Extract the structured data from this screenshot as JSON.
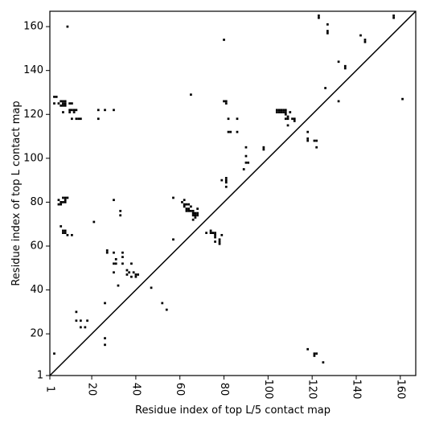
{
  "chart_data": {
    "type": "scatter",
    "title": "",
    "xlabel": "Residue index of top L/5 contact map",
    "ylabel": "Residue index of top L contact map",
    "xlim": [
      1,
      167
    ],
    "ylim": [
      1,
      167
    ],
    "xticks": [
      1,
      20,
      40,
      60,
      80,
      100,
      120,
      140,
      160
    ],
    "yticks": [
      1,
      20,
      40,
      60,
      80,
      100,
      120,
      140,
      160
    ],
    "grid": false,
    "legend": "none",
    "diagonal": {
      "from": [
        1,
        1
      ],
      "to": [
        167,
        167
      ]
    },
    "marker_color": "#000000",
    "line_color": "#000000",
    "points": [
      [
        3,
        11
      ],
      [
        3,
        125
      ],
      [
        3,
        128
      ],
      [
        4,
        128
      ],
      [
        5,
        125
      ],
      [
        5,
        79
      ],
      [
        5,
        81
      ],
      [
        6,
        79
      ],
      [
        6,
        80
      ],
      [
        6,
        69
      ],
      [
        6,
        124
      ],
      [
        6,
        126
      ],
      [
        7,
        124
      ],
      [
        7,
        125
      ],
      [
        7,
        126
      ],
      [
        7,
        121
      ],
      [
        7,
        66
      ],
      [
        7,
        67
      ],
      [
        7,
        80
      ],
      [
        7,
        82
      ],
      [
        8,
        66
      ],
      [
        8,
        67
      ],
      [
        8,
        80
      ],
      [
        8,
        81
      ],
      [
        8,
        82
      ],
      [
        8,
        124
      ],
      [
        8,
        125
      ],
      [
        8,
        126
      ],
      [
        9,
        65
      ],
      [
        9,
        82
      ],
      [
        9,
        160
      ],
      [
        10,
        125
      ],
      [
        10,
        122
      ],
      [
        10,
        121
      ],
      [
        11,
        125
      ],
      [
        11,
        122
      ],
      [
        11,
        118
      ],
      [
        11,
        65
      ],
      [
        12,
        122
      ],
      [
        12,
        121
      ],
      [
        13,
        122
      ],
      [
        13,
        118
      ],
      [
        13,
        30
      ],
      [
        13,
        26
      ],
      [
        14,
        118
      ],
      [
        15,
        118
      ],
      [
        15,
        26
      ],
      [
        15,
        23
      ],
      [
        17,
        23
      ],
      [
        18,
        26
      ],
      [
        21,
        71
      ],
      [
        23,
        122
      ],
      [
        23,
        118
      ],
      [
        26,
        122
      ],
      [
        26,
        34
      ],
      [
        26,
        18
      ],
      [
        26,
        15
      ],
      [
        27,
        58
      ],
      [
        27,
        57
      ],
      [
        30,
        122
      ],
      [
        30,
        81
      ],
      [
        30,
        57
      ],
      [
        30,
        52
      ],
      [
        30,
        48
      ],
      [
        31,
        54
      ],
      [
        31,
        52
      ],
      [
        32,
        42
      ],
      [
        33,
        76
      ],
      [
        33,
        74
      ],
      [
        34,
        57
      ],
      [
        34,
        55
      ],
      [
        34,
        52
      ],
      [
        36,
        49
      ],
      [
        36,
        47
      ],
      [
        37,
        48
      ],
      [
        38,
        52
      ],
      [
        38,
        46
      ],
      [
        39,
        48
      ],
      [
        40,
        47
      ],
      [
        40,
        46
      ],
      [
        41,
        47
      ],
      [
        47,
        41
      ],
      [
        52,
        34
      ],
      [
        54,
        31
      ],
      [
        57,
        82
      ],
      [
        57,
        63
      ],
      [
        61,
        80
      ],
      [
        62,
        81
      ],
      [
        62,
        79
      ],
      [
        62,
        78
      ],
      [
        63,
        79
      ],
      [
        63,
        77
      ],
      [
        63,
        76
      ],
      [
        64,
        79
      ],
      [
        64,
        77
      ],
      [
        64,
        76
      ],
      [
        65,
        78
      ],
      [
        65,
        76
      ],
      [
        65,
        129
      ],
      [
        66,
        76
      ],
      [
        66,
        75
      ],
      [
        66,
        74
      ],
      [
        66,
        72
      ],
      [
        67,
        75
      ],
      [
        67,
        74
      ],
      [
        67,
        73
      ],
      [
        68,
        77
      ],
      [
        68,
        75
      ],
      [
        68,
        74
      ],
      [
        72,
        66
      ],
      [
        74,
        67
      ],
      [
        74,
        66
      ],
      [
        75,
        66
      ],
      [
        76,
        66
      ],
      [
        76,
        65
      ],
      [
        76,
        62
      ],
      [
        76,
        64
      ],
      [
        78,
        63
      ],
      [
        78,
        62
      ],
      [
        78,
        61
      ],
      [
        79,
        90
      ],
      [
        79,
        65
      ],
      [
        80,
        154
      ],
      [
        80,
        126
      ],
      [
        81,
        126
      ],
      [
        81,
        125
      ],
      [
        81,
        91
      ],
      [
        81,
        90
      ],
      [
        81,
        89
      ],
      [
        81,
        87
      ],
      [
        82,
        118
      ],
      [
        82,
        112
      ],
      [
        83,
        112
      ],
      [
        86,
        118
      ],
      [
        86,
        112
      ],
      [
        89,
        95
      ],
      [
        90,
        105
      ],
      [
        90,
        101
      ],
      [
        90,
        98
      ],
      [
        91,
        98
      ],
      [
        98,
        105
      ],
      [
        98,
        104
      ],
      [
        104,
        122
      ],
      [
        104,
        121
      ],
      [
        105,
        122
      ],
      [
        105,
        121
      ],
      [
        106,
        122
      ],
      [
        106,
        121
      ],
      [
        107,
        122
      ],
      [
        107,
        121
      ],
      [
        108,
        122
      ],
      [
        108,
        121
      ],
      [
        108,
        120
      ],
      [
        108,
        118
      ],
      [
        109,
        119
      ],
      [
        109,
        118
      ],
      [
        109,
        115
      ],
      [
        110,
        121
      ],
      [
        111,
        118
      ],
      [
        112,
        118
      ],
      [
        112,
        117
      ],
      [
        118,
        112
      ],
      [
        118,
        109
      ],
      [
        118,
        108
      ],
      [
        118,
        13
      ],
      [
        121,
        108
      ],
      [
        121,
        11
      ],
      [
        121,
        10
      ],
      [
        122,
        108
      ],
      [
        122,
        105
      ],
      [
        122,
        11
      ],
      [
        123,
        165
      ],
      [
        123,
        164
      ],
      [
        125,
        7
      ],
      [
        126,
        132
      ],
      [
        127,
        161
      ],
      [
        127,
        158
      ],
      [
        127,
        157
      ],
      [
        132,
        144
      ],
      [
        132,
        126
      ],
      [
        135,
        142
      ],
      [
        135,
        141
      ],
      [
        142,
        156
      ],
      [
        144,
        154
      ],
      [
        144,
        153
      ],
      [
        157,
        165
      ],
      [
        157,
        164
      ],
      [
        161,
        127
      ]
    ]
  }
}
